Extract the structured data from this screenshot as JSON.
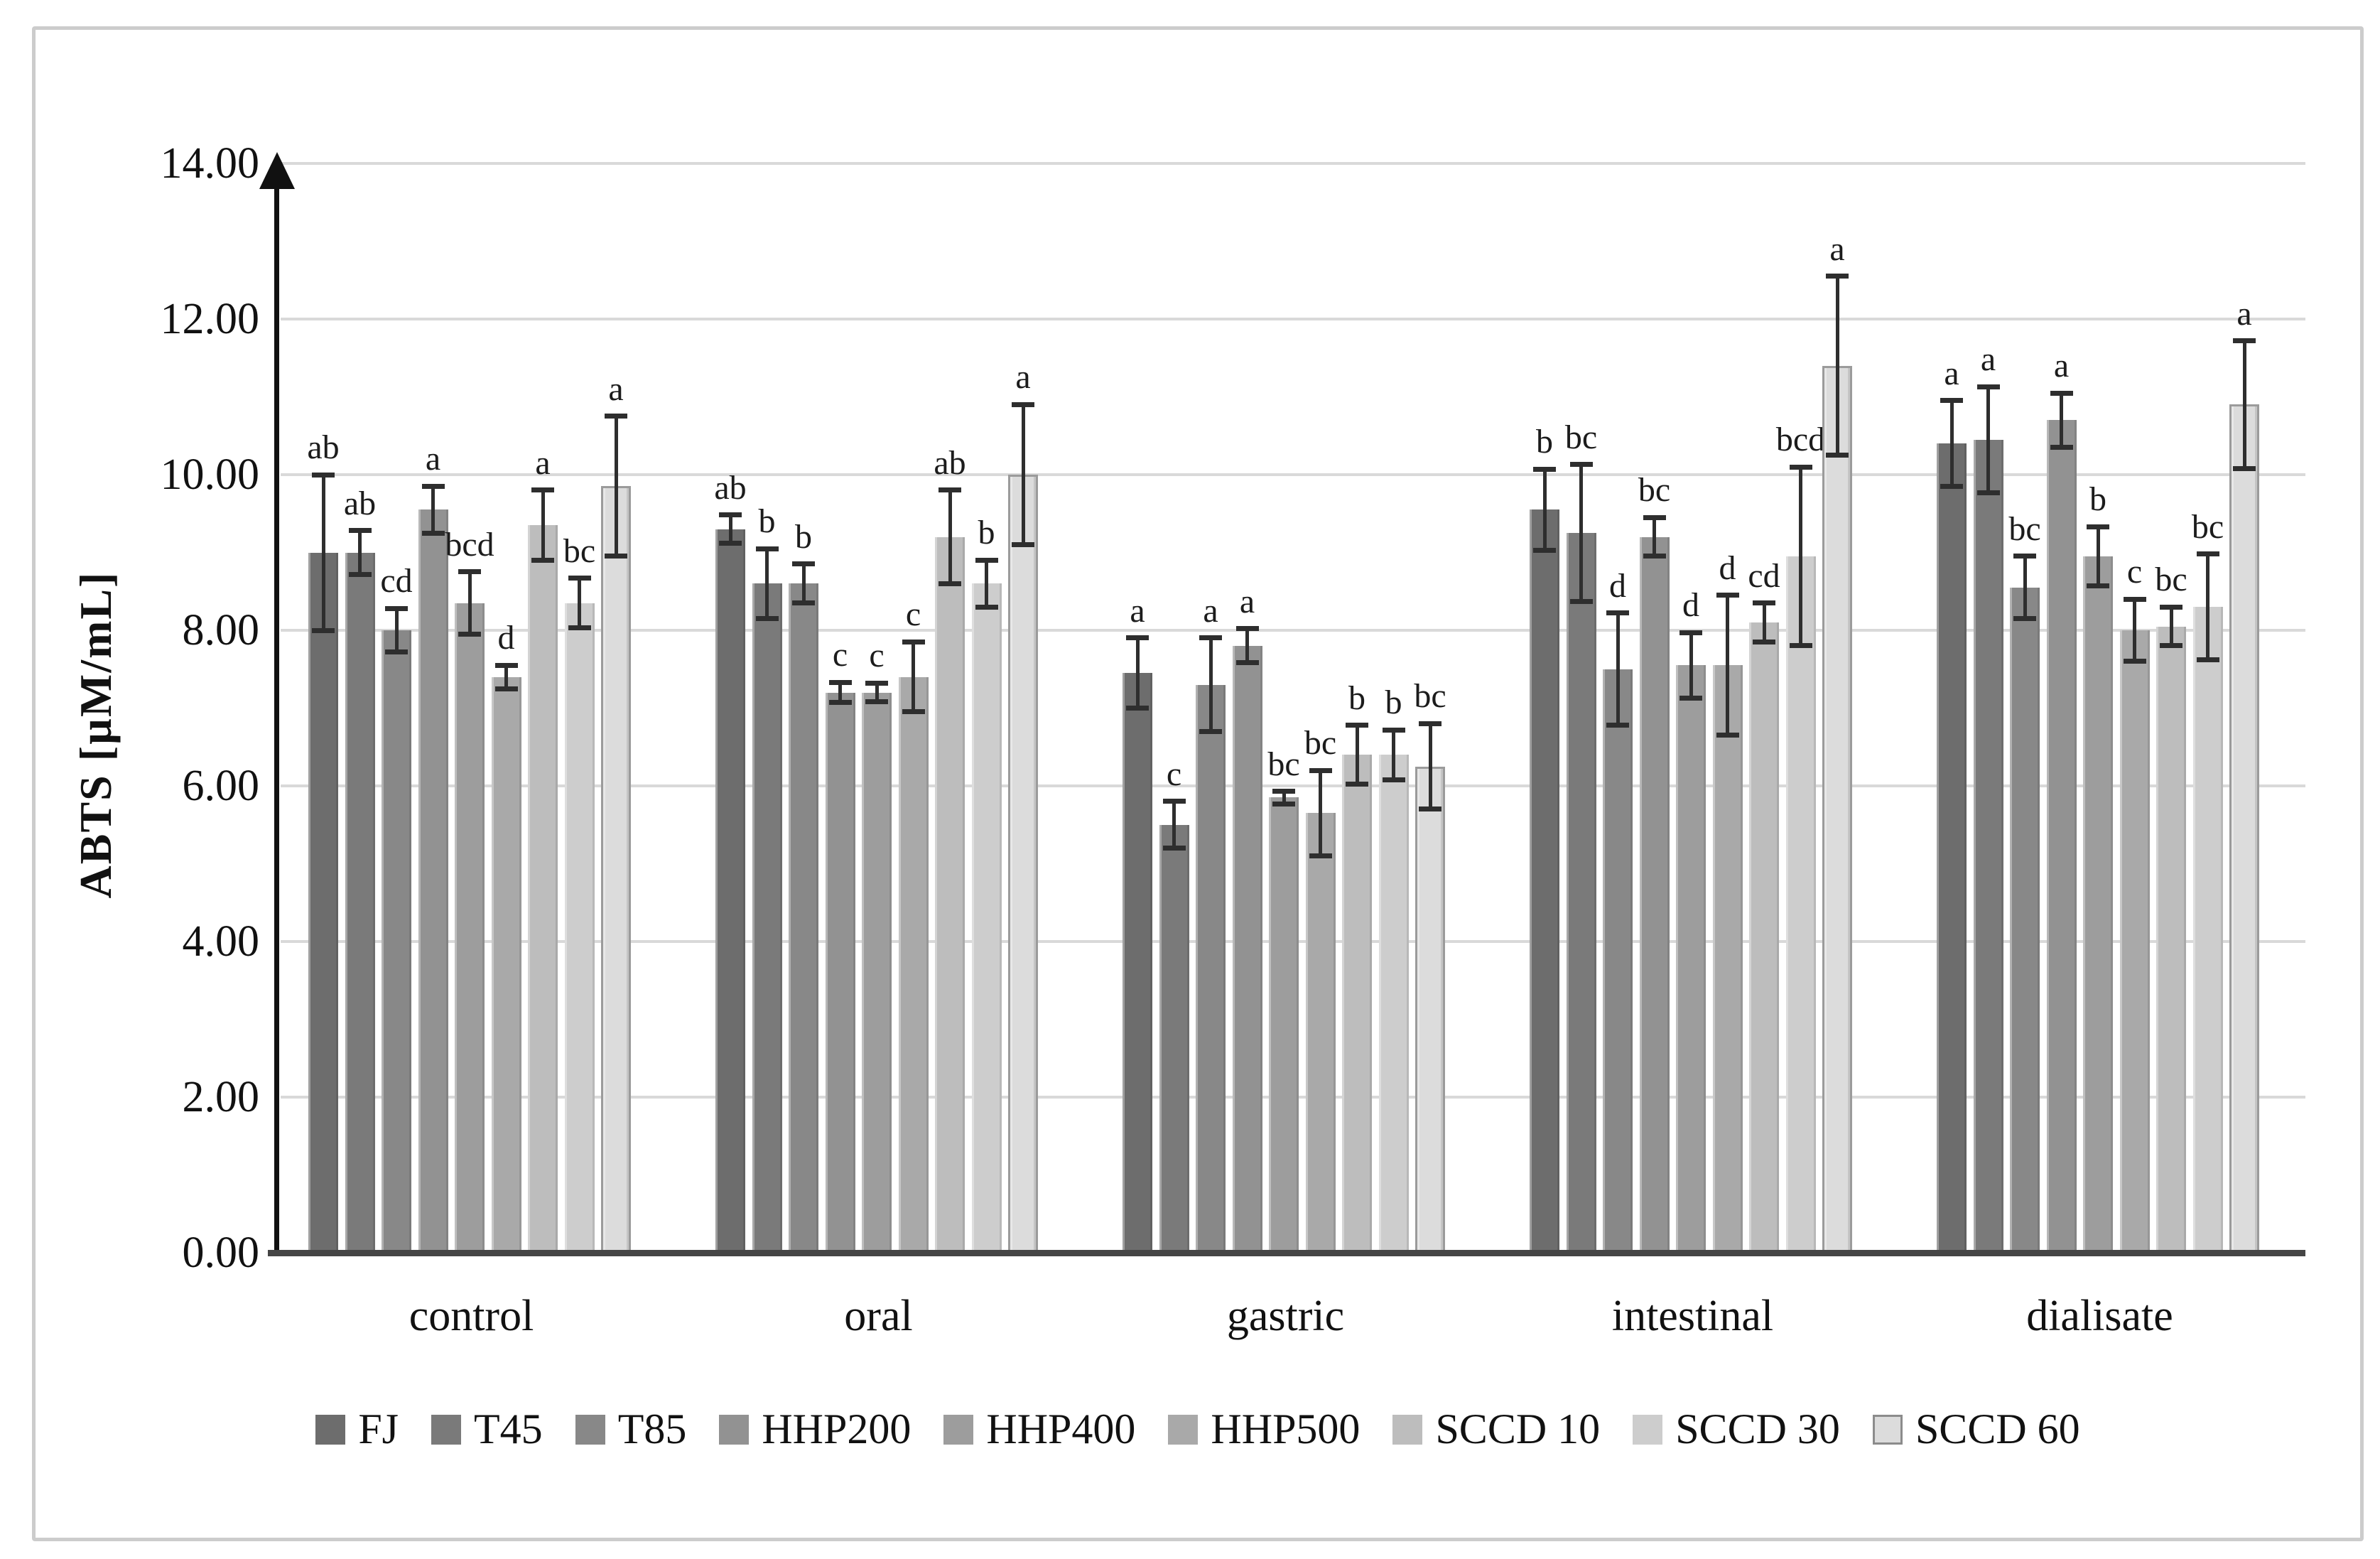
{
  "figure": {
    "border_color": "#cccccc",
    "background": "#ffffff"
  },
  "chart_data": {
    "type": "bar",
    "title": "",
    "ylabel": "ABTS [µM/mL]",
    "ylim": [
      0,
      14
    ],
    "ytick_step": 2,
    "ytick_labels": [
      "0.00",
      "2.00",
      "4.00",
      "6.00",
      "8.00",
      "10.00",
      "12.00",
      "14.00"
    ],
    "grid": "horizontal",
    "grid_color": "#d9d9d9",
    "error_bar_color": "#2e2e2e",
    "legend_position": "bottom",
    "categories": [
      "control",
      "oral",
      "gastric",
      "intestinal",
      "dialisate"
    ],
    "series": [
      {
        "name": "FJ",
        "color": "#6d6d6d",
        "outlined": false,
        "values": [
          9.0,
          9.3,
          7.45,
          9.55,
          10.4
        ],
        "errors": [
          1.0,
          0.18,
          0.45,
          0.52,
          0.55
        ],
        "letters": [
          "ab",
          "ab",
          "a",
          "b",
          "a"
        ]
      },
      {
        "name": "T45",
        "color": "#7a7a7a",
        "outlined": false,
        "values": [
          9.0,
          8.6,
          5.5,
          9.25,
          10.45
        ],
        "errors": [
          0.28,
          0.45,
          0.3,
          0.88,
          0.68
        ],
        "letters": [
          "ab",
          "b",
          "c",
          "bc",
          "a"
        ]
      },
      {
        "name": "T85",
        "color": "#888888",
        "outlined": false,
        "values": [
          8.0,
          8.6,
          7.3,
          7.5,
          8.55
        ],
        "errors": [
          0.28,
          0.25,
          0.6,
          0.72,
          0.4
        ],
        "letters": [
          "cd",
          "b",
          "a",
          "d",
          "bc"
        ]
      },
      {
        "name": "HHP200",
        "color": "#929292",
        "outlined": false,
        "values": [
          9.55,
          7.2,
          7.8,
          9.2,
          10.7
        ],
        "errors": [
          0.3,
          0.13,
          0.22,
          0.25,
          0.35
        ],
        "letters": [
          "a",
          "c",
          "a",
          "bc",
          "a"
        ]
      },
      {
        "name": "HHP400",
        "color": "#9d9d9d",
        "outlined": false,
        "values": [
          8.35,
          7.2,
          5.85,
          7.55,
          8.95
        ],
        "errors": [
          0.4,
          0.12,
          0.08,
          0.42,
          0.38
        ],
        "letters": [
          "bcd",
          "c",
          "bc",
          "d",
          "b"
        ]
      },
      {
        "name": "HHP500",
        "color": "#a9a9a9",
        "outlined": false,
        "values": [
          7.4,
          7.4,
          5.65,
          7.55,
          8.0
        ],
        "errors": [
          0.15,
          0.45,
          0.55,
          0.9,
          0.4
        ],
        "letters": [
          "d",
          "c",
          "bc",
          "d",
          "c"
        ]
      },
      {
        "name": "SCCD 10",
        "color": "#bdbdbd",
        "outlined": false,
        "values": [
          9.35,
          9.2,
          6.4,
          8.1,
          8.05
        ],
        "errors": [
          0.45,
          0.6,
          0.38,
          0.25,
          0.25
        ],
        "letters": [
          "a",
          "ab",
          "b",
          "cd",
          "bc"
        ]
      },
      {
        "name": "SCCD 30",
        "color": "#cdcdcd",
        "outlined": false,
        "values": [
          8.35,
          8.6,
          6.4,
          8.95,
          8.3
        ],
        "errors": [
          0.32,
          0.3,
          0.32,
          1.15,
          0.68
        ],
        "letters": [
          "bc",
          "b",
          "b",
          "bcd",
          "bc"
        ]
      },
      {
        "name": "SCCD 60",
        "color": "#dcdcdc",
        "outlined": true,
        "values": [
          9.85,
          10.0,
          6.25,
          11.4,
          10.9
        ],
        "errors": [
          0.9,
          0.9,
          0.55,
          1.15,
          0.82
        ],
        "letters": [
          "a",
          "a",
          "bc",
          "a",
          "a"
        ]
      }
    ]
  }
}
